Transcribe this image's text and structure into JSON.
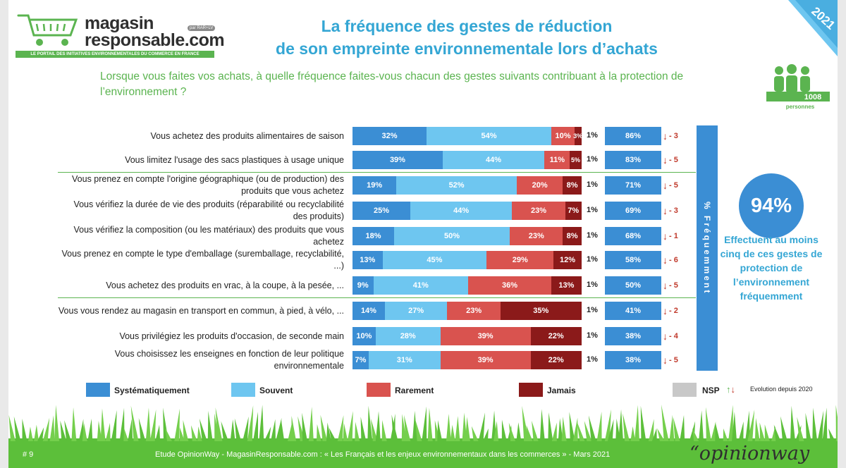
{
  "header": {
    "logo_line1": "magasin",
    "logo_line2": "responsable.com",
    "logo_tag": "par RAR+LV",
    "logo_band": "LE PORTAIL DES INITIATIVES ENVIRONNEMENTALES DU COMMERCE EN FRANCE",
    "title_line1": "La fréquence des gestes de réduction",
    "title_line2": "de son empreinte environnementale lors d’achats",
    "question": "Lorsque vous faites vos achats, à quelle fréquence faites-vous chacun des gestes suivants contribuant à la protection de l’environnement ?",
    "year": "2021",
    "sample_size": "1008",
    "sample_label": "personnes"
  },
  "colors": {
    "systematiquement": "#3b8ed4",
    "souvent": "#6ec6f0",
    "rarement": "#d9534f",
    "jamais": "#8b1a1a",
    "nsp": "#c8c8c8",
    "accent_blue": "#34a6d4",
    "accent_green": "#5bb450"
  },
  "chart_data": {
    "type": "bar",
    "orientation": "horizontal-stacked",
    "categories": [
      "Vous achetez des produits alimentaires de saison",
      "Vous limitez l'usage des sacs plastiques à usage unique",
      "Vous prenez en compte l'origine géographique (ou de production) des produits que vous achetez",
      "Vous vérifiez la durée de vie des produits (réparabilité ou recyclabilité des produits)",
      "Vous vérifiez la composition (ou les matériaux) des produits que vous achetez",
      "Vous prenez en compte le type d'emballage (suremballage, recyclabilité, ...)",
      "Vous achetez des produits en vrac, à la coupe, à la pesée, ...",
      "Vous vous rendez au magasin en transport en commun, à pied, à vélo, ...",
      "Vous privilégiez les produits d'occasion, de seconde main",
      "Vous choisissez les enseignes en fonction de leur politique environnementale"
    ],
    "series": [
      {
        "name": "Systématiquement",
        "values": [
          32,
          39,
          19,
          25,
          18,
          13,
          9,
          14,
          10,
          7
        ]
      },
      {
        "name": "Souvent",
        "values": [
          54,
          44,
          52,
          44,
          50,
          45,
          41,
          27,
          28,
          31
        ]
      },
      {
        "name": "Rarement",
        "values": [
          10,
          11,
          20,
          23,
          23,
          29,
          36,
          23,
          39,
          39
        ]
      },
      {
        "name": "Jamais",
        "values": [
          3,
          5,
          8,
          7,
          8,
          12,
          13,
          35,
          22,
          22
        ]
      },
      {
        "name": "NSP",
        "values": [
          1,
          1,
          1,
          1,
          1,
          1,
          1,
          1,
          1,
          1
        ]
      }
    ],
    "value_suffix": "%",
    "frequently_totals": [
      86,
      83,
      71,
      69,
      68,
      58,
      50,
      41,
      38,
      38
    ],
    "evolution_vs_2020": [
      -3,
      -5,
      -5,
      -3,
      -1,
      -6,
      -5,
      -2,
      -4,
      -5
    ],
    "frequently_label": "% Fréquemment",
    "evolution_label": "Evolution depuis 2020",
    "separators_after": [
      1,
      6
    ]
  },
  "summary": {
    "value": "94%",
    "caption": "Effectuent au moins cinq de ces gestes de protection de l’environnement fréquemment"
  },
  "legend": {
    "systematiquement": "Systématiquement",
    "souvent": "Souvent",
    "rarement": "Rarement",
    "jamais": "Jamais",
    "nsp": "NSP"
  },
  "footer": {
    "slide_number": "# 9",
    "source": "Etude OpinionWay - MagasinResponsable.com : « Les Français et les enjeux environnementaux dans les commerces » - Mars 2021",
    "brand": "“opinionway"
  }
}
